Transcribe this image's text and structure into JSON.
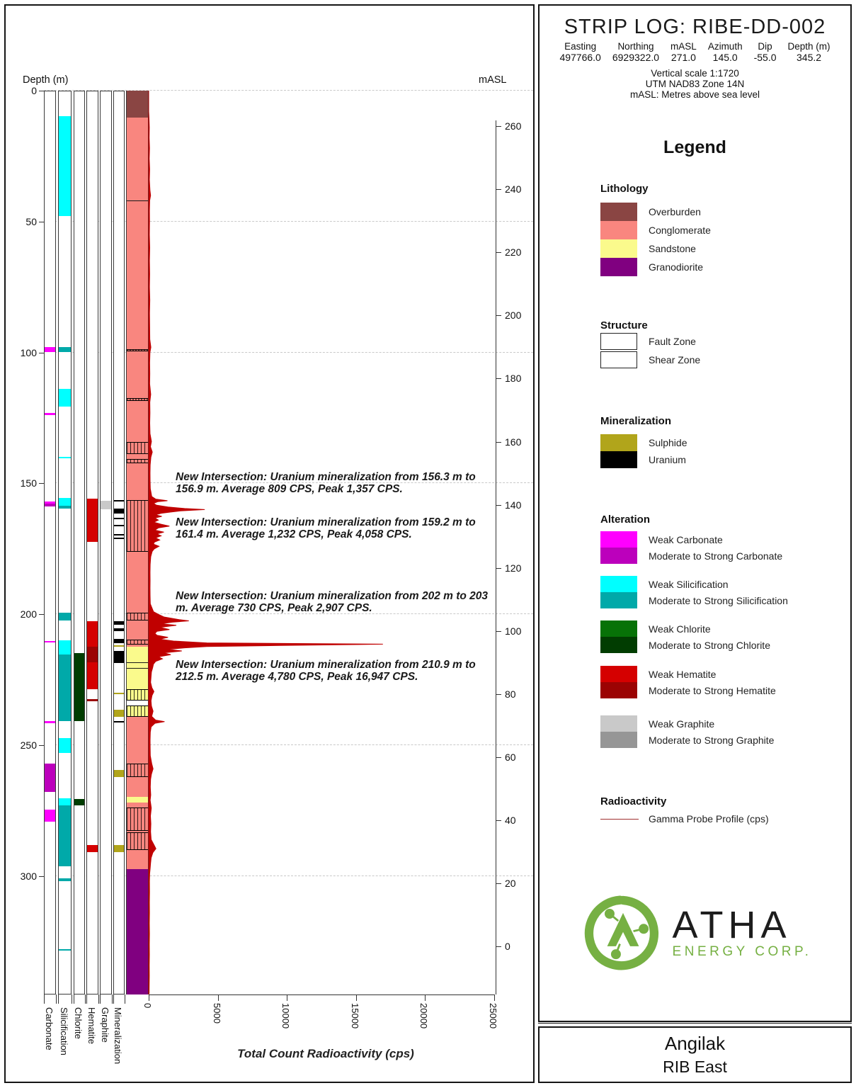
{
  "header": {
    "title": "STRIP LOG: RIBE-DD-002",
    "fields": [
      {
        "label": "Easting",
        "value": "497766.0"
      },
      {
        "label": "Northing",
        "value": "6929322.0"
      },
      {
        "label": "mASL",
        "value": "271.0"
      },
      {
        "label": "Azimuth",
        "value": "145.0"
      },
      {
        "label": "Dip",
        "value": "-55.0"
      },
      {
        "label": "Depth (m)",
        "value": "345.2"
      }
    ],
    "notes": [
      "Vertical scale 1:1720",
      "UTM NAD83 Zone 14N",
      "mASL: Metres above sea level"
    ]
  },
  "axes": {
    "depth_label": "Depth (m)",
    "masl_label": "mASL",
    "radio_label": "Total Count Radioactivity (cps)",
    "depth_ticks": [
      0,
      50,
      100,
      150,
      200,
      250,
      300
    ],
    "masl_ticks": [
      260,
      240,
      220,
      200,
      180,
      160,
      140,
      120,
      100,
      80,
      60,
      40,
      20,
      0
    ],
    "radio_ticks": [
      0,
      5000,
      10000,
      15000,
      20000,
      25000
    ]
  },
  "columns": [
    {
      "key": "carbonate",
      "label": "Carbonate"
    },
    {
      "key": "silicification",
      "label": "Silicification"
    },
    {
      "key": "chlorite",
      "label": "Chlorite"
    },
    {
      "key": "hematite",
      "label": "Hematite"
    },
    {
      "key": "graphite",
      "label": "Graphite"
    },
    {
      "key": "mineralization",
      "label": "Mineralization"
    }
  ],
  "chart_data": {
    "type": "strip-log",
    "hole_id": "RIBE-DD-002",
    "total_depth_m": 345.2,
    "collar_masl": 271.0,
    "lithology": [
      {
        "from": 0,
        "to": 10.3,
        "unit": "overburden"
      },
      {
        "from": 10.3,
        "to": 212.3,
        "unit": "conglomerate"
      },
      {
        "from": 212.3,
        "to": 232.8,
        "unit": "sandstone"
      },
      {
        "from": 232.8,
        "to": 234.8,
        "unit": "gap"
      },
      {
        "from": 234.8,
        "to": 239.2,
        "unit": "sandstone"
      },
      {
        "from": 239.2,
        "to": 269.8,
        "unit": "conglomerate"
      },
      {
        "from": 269.8,
        "to": 272.0,
        "unit": "sandstone"
      },
      {
        "from": 272.0,
        "to": 297.3,
        "unit": "conglomerate"
      },
      {
        "from": 297.3,
        "to": 345.2,
        "unit": "granodiorite"
      }
    ],
    "structures": [
      {
        "from": 98.7,
        "to": 99.6,
        "type": "shear"
      },
      {
        "from": 117.4,
        "to": 118.4,
        "type": "shear"
      },
      {
        "from": 134.2,
        "to": 138.8,
        "type": "fault"
      },
      {
        "from": 140.6,
        "to": 142.2,
        "type": "fault"
      },
      {
        "from": 156.5,
        "to": 176.0,
        "type": "fault"
      },
      {
        "from": 199.4,
        "to": 202.3,
        "type": "fault"
      },
      {
        "from": 209.6,
        "to": 211.6,
        "type": "fault"
      },
      {
        "from": 228.6,
        "to": 232.8,
        "type": "fault"
      },
      {
        "from": 234.8,
        "to": 239.2,
        "type": "fault"
      },
      {
        "from": 257.0,
        "to": 262.2,
        "type": "fault"
      },
      {
        "from": 273.8,
        "to": 282.7,
        "type": "fault"
      },
      {
        "from": 283.3,
        "to": 290.1,
        "type": "fault"
      }
    ],
    "contacts": [
      42,
      218.4,
      220.6
    ],
    "alteration": {
      "carbonate": [
        {
          "from": 97.9,
          "to": 99.8,
          "grade": "weak"
        },
        {
          "from": 123.2,
          "to": 123.9,
          "grade": "weak"
        },
        {
          "from": 156.8,
          "to": 157.7,
          "grade": "weak"
        },
        {
          "from": 157.7,
          "to": 158.9,
          "grade": "strong"
        },
        {
          "from": 210.1,
          "to": 210.8,
          "grade": "weak"
        },
        {
          "from": 240.9,
          "to": 241.5,
          "grade": "weak"
        },
        {
          "from": 257.0,
          "to": 267.8,
          "grade": "strong"
        },
        {
          "from": 274.6,
          "to": 279.2,
          "grade": "weak"
        }
      ],
      "silicification": [
        {
          "from": 9.8,
          "to": 47.8,
          "grade": "weak"
        },
        {
          "from": 97.9,
          "to": 99.8,
          "grade": "strong"
        },
        {
          "from": 114.0,
          "to": 120.7,
          "grade": "weak"
        },
        {
          "from": 139.8,
          "to": 140.5,
          "grade": "weak"
        },
        {
          "from": 155.6,
          "to": 158.6,
          "grade": "weak"
        },
        {
          "from": 158.6,
          "to": 159.7,
          "grade": "strong"
        },
        {
          "from": 199.4,
          "to": 202.3,
          "grade": "strong"
        },
        {
          "from": 209.8,
          "to": 215.4,
          "grade": "weak"
        },
        {
          "from": 215.4,
          "to": 240.8,
          "grade": "strong"
        },
        {
          "from": 247.4,
          "to": 252.9,
          "grade": "weak"
        },
        {
          "from": 270.3,
          "to": 272.9,
          "grade": "weak"
        },
        {
          "from": 272.9,
          "to": 296.2,
          "grade": "strong"
        },
        {
          "from": 300.8,
          "to": 302.0,
          "grade": "strong"
        },
        {
          "from": 327.8,
          "to": 328.4,
          "grade": "strong"
        }
      ],
      "chlorite": [
        {
          "from": 214.9,
          "to": 240.8,
          "grade": "strong"
        },
        {
          "from": 270.5,
          "to": 273.0,
          "grade": "strong"
        }
      ],
      "hematite": [
        {
          "from": 155.9,
          "to": 172.3,
          "grade": "weak"
        },
        {
          "from": 202.6,
          "to": 212.4,
          "grade": "weak"
        },
        {
          "from": 212.4,
          "to": 218.3,
          "grade": "strong"
        },
        {
          "from": 218.3,
          "to": 228.6,
          "grade": "weak"
        },
        {
          "from": 232.3,
          "to": 233.1,
          "grade": "strong"
        },
        {
          "from": 288.2,
          "to": 290.9,
          "grade": "weak"
        }
      ],
      "graphite": [
        {
          "from": 156.6,
          "to": 160.0,
          "grade": "weak"
        }
      ]
    },
    "mineralization": [
      {
        "from": 156.3,
        "to": 156.9,
        "type": "uranium"
      },
      {
        "from": 159.6,
        "to": 161.6,
        "type": "uranium"
      },
      {
        "from": 163.0,
        "to": 163.4,
        "type": "uranium"
      },
      {
        "from": 165.8,
        "to": 166.2,
        "type": "uranium"
      },
      {
        "from": 169.4,
        "to": 169.9,
        "type": "uranium"
      },
      {
        "from": 170.7,
        "to": 171.1,
        "type": "uranium"
      },
      {
        "from": 202.6,
        "to": 204.1,
        "type": "uranium"
      },
      {
        "from": 205.4,
        "to": 206.4,
        "type": "uranium"
      },
      {
        "from": 209.4,
        "to": 210.9,
        "type": "uranium"
      },
      {
        "from": 211.9,
        "to": 212.3,
        "type": "sulphide"
      },
      {
        "from": 214.0,
        "to": 218.7,
        "type": "uranium"
      },
      {
        "from": 229.9,
        "to": 230.4,
        "type": "sulphide"
      },
      {
        "from": 236.4,
        "to": 239.2,
        "type": "sulphide"
      },
      {
        "from": 240.8,
        "to": 241.4,
        "type": "uranium"
      },
      {
        "from": 259.5,
        "to": 262.2,
        "type": "sulphide"
      },
      {
        "from": 288.2,
        "to": 290.9,
        "type": "sulphide"
      }
    ],
    "gamma_profile_cps": [
      [
        0,
        0
      ],
      [
        8,
        0
      ],
      [
        10,
        20
      ],
      [
        14,
        45
      ],
      [
        18,
        35
      ],
      [
        22,
        60
      ],
      [
        26,
        40
      ],
      [
        30,
        70
      ],
      [
        34,
        50
      ],
      [
        38,
        90
      ],
      [
        40,
        140
      ],
      [
        42,
        70
      ],
      [
        46,
        55
      ],
      [
        50,
        60
      ],
      [
        55,
        50
      ],
      [
        60,
        75
      ],
      [
        65,
        55
      ],
      [
        70,
        70
      ],
      [
        75,
        55
      ],
      [
        80,
        80
      ],
      [
        85,
        60
      ],
      [
        90,
        70
      ],
      [
        95,
        80
      ],
      [
        98,
        160
      ],
      [
        100,
        90
      ],
      [
        104,
        70
      ],
      [
        108,
        80
      ],
      [
        112,
        70
      ],
      [
        116,
        150
      ],
      [
        119,
        80
      ],
      [
        123,
        90
      ],
      [
        127,
        75
      ],
      [
        131,
        95
      ],
      [
        134,
        200
      ],
      [
        136,
        130
      ],
      [
        138,
        260
      ],
      [
        140,
        160
      ],
      [
        143,
        110
      ],
      [
        146,
        95
      ],
      [
        149,
        100
      ],
      [
        152,
        120
      ],
      [
        155,
        220
      ],
      [
        156,
        500
      ],
      [
        156.6,
        1357
      ],
      [
        157,
        650
      ],
      [
        157.6,
        350
      ],
      [
        158.3,
        550
      ],
      [
        159,
        1400
      ],
      [
        159.6,
        2600
      ],
      [
        160,
        4058
      ],
      [
        160.5,
        2300
      ],
      [
        161,
        1500
      ],
      [
        161.4,
        900
      ],
      [
        162,
        500
      ],
      [
        162.6,
        950
      ],
      [
        163.2,
        450
      ],
      [
        164,
        700
      ],
      [
        164.8,
        380
      ],
      [
        165.6,
        900
      ],
      [
        166.3,
        1500
      ],
      [
        167,
        700
      ],
      [
        167.8,
        450
      ],
      [
        168.6,
        1100
      ],
      [
        169.3,
        600
      ],
      [
        170,
        900
      ],
      [
        170.8,
        500
      ],
      [
        171.6,
        800
      ],
      [
        172.4,
        420
      ],
      [
        173.2,
        350
      ],
      [
        174,
        750
      ],
      [
        175,
        400
      ],
      [
        176,
        250
      ],
      [
        178,
        150
      ],
      [
        181,
        110
      ],
      [
        184,
        95
      ],
      [
        187,
        105
      ],
      [
        190,
        95
      ],
      [
        193,
        105
      ],
      [
        196,
        120
      ],
      [
        199,
        350
      ],
      [
        200,
        700
      ],
      [
        201,
        1100
      ],
      [
        202,
        2200
      ],
      [
        202.5,
        2907
      ],
      [
        203,
        1700
      ],
      [
        203.6,
        900
      ],
      [
        204.2,
        2000
      ],
      [
        205,
        800
      ],
      [
        205.8,
        1500
      ],
      [
        206.5,
        600
      ],
      [
        207.3,
        450
      ],
      [
        208,
        600
      ],
      [
        208.8,
        1400
      ],
      [
        209.5,
        800
      ],
      [
        210.2,
        1800
      ],
      [
        210.9,
        4200
      ],
      [
        211.4,
        16947
      ],
      [
        211.9,
        9500
      ],
      [
        212.3,
        4200
      ],
      [
        212.8,
        2600
      ],
      [
        213.4,
        1400
      ],
      [
        214,
        2400
      ],
      [
        214.7,
        1100
      ],
      [
        215.4,
        1600
      ],
      [
        216.2,
        700
      ],
      [
        217,
        1000
      ],
      [
        218,
        500
      ],
      [
        219,
        350
      ],
      [
        220.5,
        280
      ],
      [
        222,
        200
      ],
      [
        224,
        170
      ],
      [
        226,
        140
      ],
      [
        228,
        230
      ],
      [
        229.5,
        380
      ],
      [
        231,
        240
      ],
      [
        233,
        170
      ],
      [
        235,
        200
      ],
      [
        237,
        320
      ],
      [
        239,
        220
      ],
      [
        240.4,
        500
      ],
      [
        241,
        1150
      ],
      [
        241.6,
        450
      ],
      [
        243,
        180
      ],
      [
        245,
        120
      ],
      [
        248,
        100
      ],
      [
        251,
        110
      ],
      [
        254,
        120
      ],
      [
        257,
        220
      ],
      [
        259,
        320
      ],
      [
        261,
        200
      ],
      [
        263,
        140
      ],
      [
        266,
        120
      ],
      [
        269,
        150
      ],
      [
        271,
        110
      ],
      [
        274,
        190
      ],
      [
        277,
        130
      ],
      [
        280,
        160
      ],
      [
        283,
        140
      ],
      [
        286,
        180
      ],
      [
        288,
        380
      ],
      [
        289.5,
        520
      ],
      [
        291,
        300
      ],
      [
        293,
        180
      ],
      [
        295,
        140
      ],
      [
        297,
        110
      ],
      [
        299,
        70
      ],
      [
        302,
        55
      ],
      [
        306,
        60
      ],
      [
        310,
        50
      ],
      [
        314,
        58
      ],
      [
        318,
        48
      ],
      [
        322,
        55
      ],
      [
        326,
        45
      ],
      [
        330,
        52
      ],
      [
        334,
        42
      ],
      [
        338,
        48
      ],
      [
        342,
        38
      ],
      [
        345,
        30
      ]
    ],
    "annotations": [
      {
        "depth_m": 156.3,
        "text": "New Intersection: Uranium mineralization from 156.3 m to 156.9 m. Average 809 CPS, Peak 1,357 CPS."
      },
      {
        "depth_m": 159.2,
        "text": "New Intersection: Uranium mineralization from 159.2 m to 161.4 m. Average 1,232 CPS, Peak 4,058 CPS."
      },
      {
        "depth_m": 202.0,
        "text": "New Intersection: Uranium mineralization from 202 m to 203 m. Average 730 CPS, Peak 2,907 CPS."
      },
      {
        "depth_m": 210.9,
        "text": "New Intersection: Uranium mineralization from 210.9 m to 212.5 m. Average 4,780 CPS, Peak 16,947 CPS."
      }
    ]
  },
  "legend": {
    "title": "Legend",
    "lithology": {
      "heading": "Lithology",
      "items": [
        {
          "key": "overburden",
          "label": "Overburden"
        },
        {
          "key": "conglomerate",
          "label": "Conglomerate"
        },
        {
          "key": "sandstone",
          "label": "Sandstone"
        },
        {
          "key": "granodiorite",
          "label": "Granodiorite"
        }
      ]
    },
    "structure": {
      "heading": "Structure",
      "items": [
        {
          "key": "fault",
          "label": "Fault Zone"
        },
        {
          "key": "shear",
          "label": "Shear Zone"
        }
      ]
    },
    "mineralization": {
      "heading": "Mineralization",
      "items": [
        {
          "key": "sulphide",
          "label": "Sulphide"
        },
        {
          "key": "uranium",
          "label": "Uranium"
        }
      ]
    },
    "alteration": {
      "heading": "Alteration",
      "groups": [
        {
          "key": "carbonate",
          "weak_label": "Weak Carbonate",
          "strong_label": "Moderate to Strong Carbonate"
        },
        {
          "key": "silicification",
          "weak_label": "Weak Silicification",
          "strong_label": "Moderate to Strong Silicification"
        },
        {
          "key": "chlorite",
          "weak_label": "Weak Chlorite",
          "strong_label": "Moderate to Strong Chlorite"
        },
        {
          "key": "hematite",
          "weak_label": "Weak Hematite",
          "strong_label": "Moderate to Strong Hematite"
        },
        {
          "key": "graphite",
          "weak_label": "Weak Graphite",
          "strong_label": "Moderate to Strong Graphite"
        }
      ]
    },
    "radioactivity": {
      "heading": "Radioactivity",
      "items": [
        {
          "key": "gamma",
          "label": "Gamma Probe Profile (cps)"
        }
      ]
    }
  },
  "logo": {
    "name": "ATHA",
    "subtitle": "ENERGY CORP."
  },
  "footer": {
    "project": "Angilak",
    "area": "RIB East"
  },
  "colors": {
    "overburden": "#8A4543",
    "conglomerate": "#F9867F",
    "sandstone": "#FAFA8C",
    "granodiorite": "#800080",
    "gap": "#FFFFFF",
    "carbonate_weak": "#FF00FF",
    "carbonate_strong": "#BC00BC",
    "silicification_weak": "#00FFFF",
    "silicification_strong": "#00A9A9",
    "chlorite_weak": "#077207",
    "chlorite_strong": "#013D01",
    "hematite_weak": "#D50000",
    "hematite_strong": "#9B0303",
    "graphite_weak": "#C9C9C9",
    "graphite_strong": "#969696",
    "sulphide": "#B1A51B",
    "uranium": "#000000",
    "gamma": "#C00000",
    "gamma_legend": "#A03030",
    "logo_green": "#76B043"
  }
}
